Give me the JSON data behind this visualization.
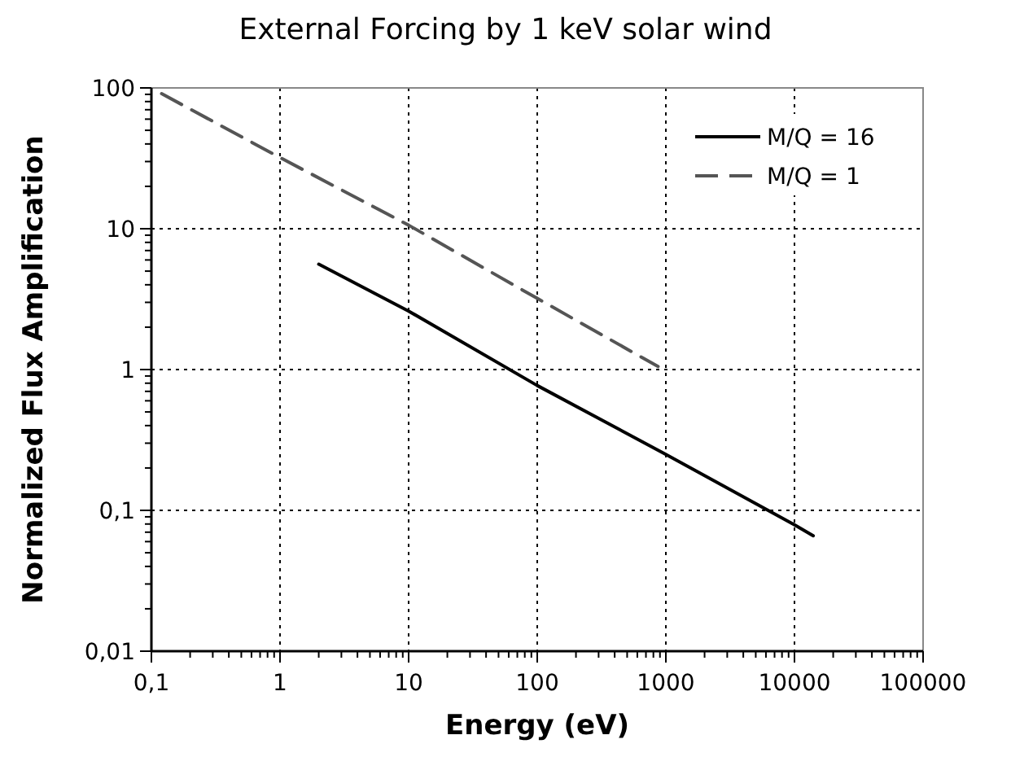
{
  "chart_data": {
    "type": "line",
    "title": "External Forcing by 1 keV solar wind",
    "xlabel": "Energy (eV)",
    "ylabel": "Normalized Flux Amplification",
    "log": "xy",
    "grid": true,
    "legend": "top right",
    "xlim": [
      0.1,
      100000
    ],
    "xticks": [
      {
        "value": 0.1,
        "label": "0,1"
      },
      1,
      10,
      100,
      1000,
      10000,
      100000
    ],
    "ylim": [
      0.01,
      100
    ],
    "yticks": [
      {
        "value": 0.01,
        "label": "0,01"
      },
      {
        "value": 0.1,
        "label": "0,1"
      },
      1,
      10,
      100
    ],
    "series": [
      {
        "name": "M/Q = 16",
        "color": "#000000",
        "line_style": "solid",
        "x": [
          2,
          10,
          100,
          1000,
          10000,
          14000
        ],
        "values": [
          5.6,
          2.6,
          0.77,
          0.25,
          0.079,
          0.066
        ]
      },
      {
        "name": "M/Q = 1",
        "color": "#555555",
        "line_style": "dashed",
        "x": [
          0.12,
          1,
          10,
          100,
          870
        ],
        "values": [
          91,
          32,
          10.6,
          3.2,
          1.05
        ]
      }
    ]
  }
}
